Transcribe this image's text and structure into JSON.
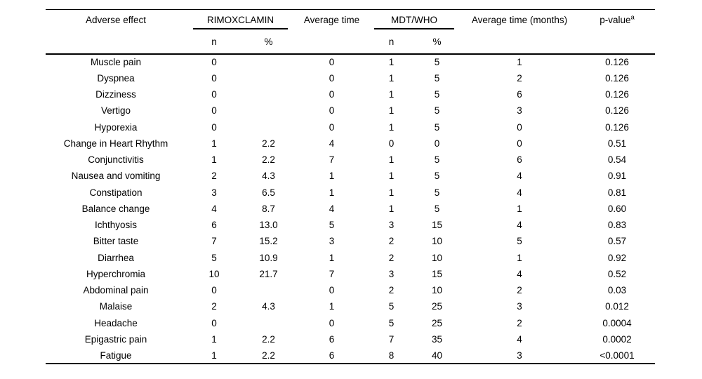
{
  "table": {
    "header": {
      "col_adverse_effect": "Adverse effect",
      "group_rimoxclamin": "RIMOXCLAMIN",
      "col_avg_time": "Average time",
      "group_mdt_who": "MDT/WHO",
      "col_avg_time_months": "Average time (months)",
      "col_p_value": "p-value",
      "p_value_superscript": "a",
      "sub_n": "n",
      "sub_pct": "%"
    },
    "rows": [
      {
        "effect": "Muscle pain",
        "rimox_n": "0",
        "rimox_pct": "",
        "avg_time": "0",
        "mdt_n": "1",
        "mdt_pct": "5",
        "avg_time_months": "1",
        "p_value": "0.126"
      },
      {
        "effect": "Dyspnea",
        "rimox_n": "0",
        "rimox_pct": "",
        "avg_time": "0",
        "mdt_n": "1",
        "mdt_pct": "5",
        "avg_time_months": "2",
        "p_value": "0.126"
      },
      {
        "effect": "Dizziness",
        "rimox_n": "0",
        "rimox_pct": "",
        "avg_time": "0",
        "mdt_n": "1",
        "mdt_pct": "5",
        "avg_time_months": "6",
        "p_value": "0.126"
      },
      {
        "effect": "Vertigo",
        "rimox_n": "0",
        "rimox_pct": "",
        "avg_time": "0",
        "mdt_n": "1",
        "mdt_pct": "5",
        "avg_time_months": "3",
        "p_value": "0.126"
      },
      {
        "effect": "Hyporexia",
        "rimox_n": "0",
        "rimox_pct": "",
        "avg_time": "0",
        "mdt_n": "1",
        "mdt_pct": "5",
        "avg_time_months": "0",
        "p_value": "0.126"
      },
      {
        "effect": "Change in Heart Rhythm",
        "rimox_n": "1",
        "rimox_pct": "2.2",
        "avg_time": "4",
        "mdt_n": "0",
        "mdt_pct": "0",
        "avg_time_months": "0",
        "p_value": "0.51"
      },
      {
        "effect": "Conjunctivitis",
        "rimox_n": "1",
        "rimox_pct": "2.2",
        "avg_time": "7",
        "mdt_n": "1",
        "mdt_pct": "5",
        "avg_time_months": "6",
        "p_value": "0.54"
      },
      {
        "effect": "Nausea and vomiting",
        "rimox_n": "2",
        "rimox_pct": "4.3",
        "avg_time": "1",
        "mdt_n": "1",
        "mdt_pct": "5",
        "avg_time_months": "4",
        "p_value": "0.91"
      },
      {
        "effect": "Constipation",
        "rimox_n": "3",
        "rimox_pct": "6.5",
        "avg_time": "1",
        "mdt_n": "1",
        "mdt_pct": "5",
        "avg_time_months": "4",
        "p_value": "0.81"
      },
      {
        "effect": "Balance change",
        "rimox_n": "4",
        "rimox_pct": "8.7",
        "avg_time": "4",
        "mdt_n": "1",
        "mdt_pct": "5",
        "avg_time_months": "1",
        "p_value": "0.60"
      },
      {
        "effect": "Ichthyosis",
        "rimox_n": "6",
        "rimox_pct": "13.0",
        "avg_time": "5",
        "mdt_n": "3",
        "mdt_pct": "15",
        "avg_time_months": "4",
        "p_value": "0.83"
      },
      {
        "effect": "Bitter taste",
        "rimox_n": "7",
        "rimox_pct": "15.2",
        "avg_time": "3",
        "mdt_n": "2",
        "mdt_pct": "10",
        "avg_time_months": "5",
        "p_value": "0.57"
      },
      {
        "effect": "Diarrhea",
        "rimox_n": "5",
        "rimox_pct": "10.9",
        "avg_time": "1",
        "mdt_n": "2",
        "mdt_pct": "10",
        "avg_time_months": "1",
        "p_value": "0.92"
      },
      {
        "effect": "Hyperchromia",
        "rimox_n": "10",
        "rimox_pct": "21.7",
        "avg_time": "7",
        "mdt_n": "3",
        "mdt_pct": "15",
        "avg_time_months": "4",
        "p_value": "0.52"
      },
      {
        "effect": "Abdominal pain",
        "rimox_n": "0",
        "rimox_pct": "",
        "avg_time": "0",
        "mdt_n": "2",
        "mdt_pct": "10",
        "avg_time_months": "2",
        "p_value": "0.03"
      },
      {
        "effect": "Malaise",
        "rimox_n": "2",
        "rimox_pct": "4.3",
        "avg_time": "1",
        "mdt_n": "5",
        "mdt_pct": "25",
        "avg_time_months": "3",
        "p_value": "0.012"
      },
      {
        "effect": "Headache",
        "rimox_n": "0",
        "rimox_pct": "",
        "avg_time": "0",
        "mdt_n": "5",
        "mdt_pct": "25",
        "avg_time_months": "2",
        "p_value": "0.0004"
      },
      {
        "effect": "Epigastric pain",
        "rimox_n": "1",
        "rimox_pct": "2.2",
        "avg_time": "6",
        "mdt_n": "7",
        "mdt_pct": "35",
        "avg_time_months": "4",
        "p_value": "0.0002"
      },
      {
        "effect": "Fatigue",
        "rimox_n": "1",
        "rimox_pct": "2.2",
        "avg_time": "6",
        "mdt_n": "8",
        "mdt_pct": "40",
        "avg_time_months": "3",
        "p_value": "<0.0001"
      }
    ],
    "colors": {
      "text": "#000000",
      "rule": "#000000",
      "background": "#ffffff"
    }
  }
}
